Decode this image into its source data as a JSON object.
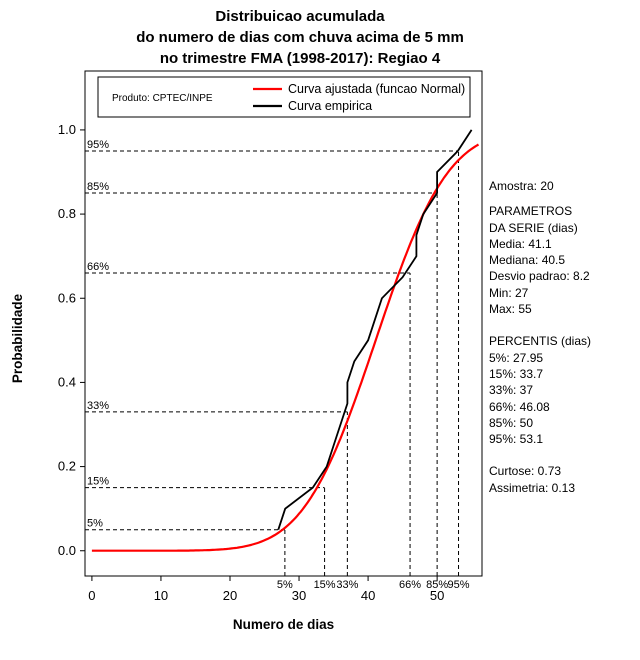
{
  "title": {
    "line1": "Distribuicao acumulada",
    "line2": "do numero de dias com chuva acima de 5 mm",
    "line3": "no trimestre FMA (1998-2017): Regiao 4"
  },
  "legend": {
    "product_label": "Produto: CPTEC/INPE",
    "entries": [
      {
        "label": "Curva ajustada (funcao Normal)",
        "color": "#ff0000"
      },
      {
        "label": "Curva empirica",
        "color": "#000000"
      }
    ]
  },
  "stats_panel": {
    "groups": [
      {
        "lines": [
          "Amostra: 20"
        ]
      },
      {
        "lines": [
          "PARAMETROS",
          "DA SERIE (dias)",
          "Media: 41.1",
          "Mediana: 40.5",
          "Desvio padrao: 8.2",
          "Min: 27",
          "Max: 55"
        ]
      },
      {
        "lines": [
          "PERCENTIS (dias)",
          "5%: 27.95",
          "15%: 33.7",
          "33%: 37",
          "66%: 46.08",
          "85%: 50",
          "95%: 53.1"
        ]
      },
      {
        "lines": [
          "Curtose: 0.73",
          "Assimetria: 0.13"
        ]
      }
    ]
  },
  "chart_data": {
    "type": "line",
    "title": "Distribuicao acumulada do numero de dias com chuva acima de 5 mm no trimestre FMA (1998-2017): Regiao 4",
    "xlabel": "Numero de dias",
    "ylabel": "Probabilidade",
    "xlim": [
      0,
      55
    ],
    "ylim": [
      0,
      1
    ],
    "xticks": [
      0,
      10,
      20,
      30,
      40,
      50
    ],
    "yticks": [
      0,
      0.2,
      0.4,
      0.6,
      0.8,
      1
    ],
    "grid": false,
    "legend_position": "top-inside",
    "sample_size": 20,
    "series": [
      {
        "name": "Curva ajustada (funcao Normal)",
        "kind": "normal-cdf",
        "color": "#ff0000",
        "mean": 41.1,
        "sd": 8.2
      },
      {
        "name": "Curva empirica",
        "kind": "empirical-cdf",
        "color": "#000000",
        "x": [
          27,
          28,
          32,
          34,
          35,
          36,
          37,
          37,
          38,
          40,
          41,
          42,
          45,
          47,
          47,
          48,
          50,
          50,
          53,
          55
        ],
        "y": [
          0.05,
          0.1,
          0.15,
          0.2,
          0.25,
          0.3,
          0.35,
          0.4,
          0.45,
          0.5,
          0.55,
          0.6,
          0.65,
          0.7,
          0.75,
          0.8,
          0.85,
          0.9,
          0.95,
          1.0
        ]
      }
    ],
    "percentiles": [
      {
        "label": "5%",
        "p": 0.05,
        "x": 27.95
      },
      {
        "label": "15%",
        "p": 0.15,
        "x": 33.7
      },
      {
        "label": "33%",
        "p": 0.33,
        "x": 37
      },
      {
        "label": "66%",
        "p": 0.66,
        "x": 46.08
      },
      {
        "label": "85%",
        "p": 0.85,
        "x": 50
      },
      {
        "label": "95%",
        "p": 0.95,
        "x": 53.1
      }
    ]
  }
}
